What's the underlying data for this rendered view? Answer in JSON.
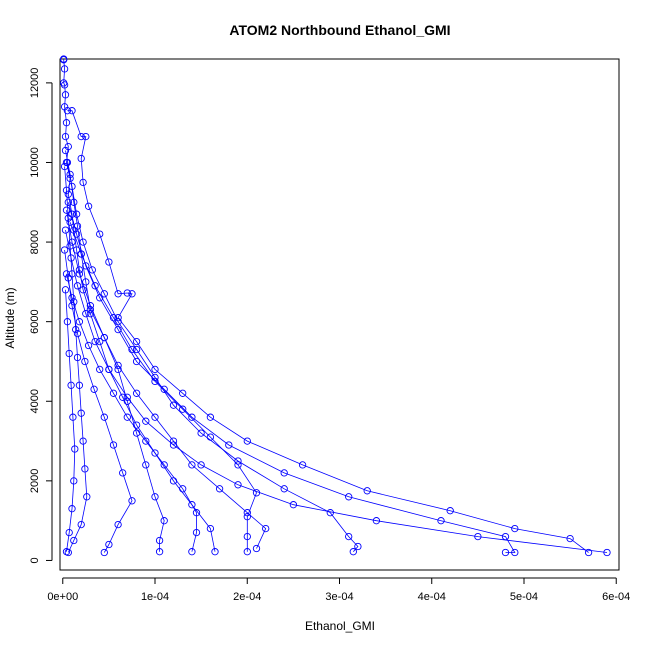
{
  "chart_data": {
    "type": "line",
    "title": "ATOM2 Northbound Ethanol_GMI",
    "xlabel": "Ethanol_GMI",
    "ylabel": "Altitude (m)",
    "xlim": [
      -3e-06,
      0.000603
    ],
    "ylim": [
      -240,
      12600
    ],
    "x_ticks": [
      0,
      0.0001,
      0.0002,
      0.0003,
      0.0004,
      0.0005,
      0.0006
    ],
    "x_tick_labels": [
      "0e+00",
      "1e-04",
      "2e-04",
      "3e-04",
      "4e-04",
      "5e-04",
      "6e-04"
    ],
    "y_ticks": [
      0,
      2000,
      4000,
      6000,
      8000,
      10000,
      12000
    ],
    "y_tick_labels": [
      "0",
      "2000",
      "4000",
      "6000",
      "8000",
      "10000",
      "12000"
    ],
    "marker": "open-circle",
    "color": "#0000ff",
    "series": [
      {
        "values": [
          {
            "x": 1e-06,
            "y": 12600
          },
          {
            "x": 1e-06,
            "y": 12580
          },
          {
            "x": 2e-06,
            "y": 12350
          },
          {
            "x": 1e-06,
            "y": 12000
          },
          {
            "x": 2e-06,
            "y": 11950
          },
          {
            "x": 3e-06,
            "y": 11700
          },
          {
            "x": 2e-06,
            "y": 11400
          },
          {
            "x": 4e-06,
            "y": 11000
          },
          {
            "x": 3e-06,
            "y": 10650
          },
          {
            "x": 6e-06,
            "y": 10400
          },
          {
            "x": 4e-06,
            "y": 10000
          },
          {
            "x": 8e-06,
            "y": 9600
          },
          {
            "x": 6e-06,
            "y": 9200
          },
          {
            "x": 1e-05,
            "y": 8700
          },
          {
            "x": 1.2e-05,
            "y": 8300
          },
          {
            "x": 1.5e-05,
            "y": 7800
          },
          {
            "x": 1.8e-05,
            "y": 7300
          },
          {
            "x": 2.2e-05,
            "y": 6800
          },
          {
            "x": 3e-05,
            "y": 6200
          },
          {
            "x": 4e-05,
            "y": 5500
          },
          {
            "x": 5e-05,
            "y": 4800
          },
          {
            "x": 7e-05,
            "y": 4100
          },
          {
            "x": 9e-05,
            "y": 3500
          },
          {
            "x": 0.00012,
            "y": 2900
          },
          {
            "x": 0.00015,
            "y": 2400
          },
          {
            "x": 0.00019,
            "y": 1900
          },
          {
            "x": 0.00025,
            "y": 1400
          },
          {
            "x": 0.00034,
            "y": 1000
          },
          {
            "x": 0.00045,
            "y": 600
          },
          {
            "x": 0.00059,
            "y": 200
          }
        ]
      },
      {
        "values": [
          {
            "x": 5e-06,
            "y": 11300
          },
          {
            "x": 1e-05,
            "y": 11300
          },
          {
            "x": 2e-05,
            "y": 10650
          },
          {
            "x": 2.5e-05,
            "y": 10650
          },
          {
            "x": 2e-05,
            "y": 10100
          },
          {
            "x": 2.2e-05,
            "y": 9500
          },
          {
            "x": 2.8e-05,
            "y": 8900
          },
          {
            "x": 4e-05,
            "y": 8200
          },
          {
            "x": 5e-05,
            "y": 7500
          },
          {
            "x": 6e-05,
            "y": 6700
          },
          {
            "x": 7e-05,
            "y": 6720
          },
          {
            "x": 7.5e-05,
            "y": 6700
          },
          {
            "x": 6e-05,
            "y": 6100
          },
          {
            "x": 8e-05,
            "y": 5500
          },
          {
            "x": 0.0001,
            "y": 4800
          },
          {
            "x": 0.00013,
            "y": 4200
          },
          {
            "x": 0.00016,
            "y": 3600
          },
          {
            "x": 0.0002,
            "y": 3000
          },
          {
            "x": 0.00026,
            "y": 2400
          },
          {
            "x": 0.00033,
            "y": 1750
          },
          {
            "x": 0.00042,
            "y": 1250
          },
          {
            "x": 0.00049,
            "y": 800
          },
          {
            "x": 0.00055,
            "y": 550
          },
          {
            "x": 0.00057,
            "y": 200
          }
        ]
      },
      {
        "values": [
          {
            "x": 3e-06,
            "y": 10300
          },
          {
            "x": 8e-06,
            "y": 9700
          },
          {
            "x": 1.2e-05,
            "y": 9000
          },
          {
            "x": 1.6e-05,
            "y": 8400
          },
          {
            "x": 2e-05,
            "y": 7700
          },
          {
            "x": 2.5e-05,
            "y": 7000
          },
          {
            "x": 3e-05,
            "y": 6300
          },
          {
            "x": 4.5e-05,
            "y": 5600
          },
          {
            "x": 6e-05,
            "y": 4900
          },
          {
            "x": 8e-05,
            "y": 4200
          },
          {
            "x": 0.0001,
            "y": 3600
          },
          {
            "x": 0.00012,
            "y": 3000
          },
          {
            "x": 0.00014,
            "y": 2400
          },
          {
            "x": 0.00017,
            "y": 1800
          },
          {
            "x": 0.0002,
            "y": 1200
          },
          {
            "x": 0.00022,
            "y": 800
          },
          {
            "x": 0.00021,
            "y": 300
          }
        ]
      },
      {
        "values": [
          {
            "x": 2e-06,
            "y": 9900
          },
          {
            "x": 4e-06,
            "y": 9300
          },
          {
            "x": 6e-06,
            "y": 8600
          },
          {
            "x": 8e-06,
            "y": 7900
          },
          {
            "x": 1e-05,
            "y": 7200
          },
          {
            "x": 1.2e-05,
            "y": 6500
          },
          {
            "x": 1.4e-05,
            "y": 5800
          },
          {
            "x": 1.6e-05,
            "y": 5100
          },
          {
            "x": 1.8e-05,
            "y": 4400
          },
          {
            "x": 2e-05,
            "y": 3700
          },
          {
            "x": 2.2e-05,
            "y": 3000
          },
          {
            "x": 2.4e-05,
            "y": 2300
          },
          {
            "x": 2.6e-05,
            "y": 1600
          },
          {
            "x": 2e-05,
            "y": 900
          },
          {
            "x": 1.2e-05,
            "y": 500
          },
          {
            "x": 6e-06,
            "y": 200
          }
        ]
      },
      {
        "values": [
          {
            "x": 6e-06,
            "y": 9000
          },
          {
            "x": 1.5e-05,
            "y": 8200
          },
          {
            "x": 2.5e-05,
            "y": 7400
          },
          {
            "x": 4e-05,
            "y": 6600
          },
          {
            "x": 6e-05,
            "y": 5800
          },
          {
            "x": 8e-05,
            "y": 5000
          },
          {
            "x": 0.00011,
            "y": 4300
          },
          {
            "x": 0.00014,
            "y": 3600
          },
          {
            "x": 0.00018,
            "y": 2900
          },
          {
            "x": 0.00024,
            "y": 2200
          },
          {
            "x": 0.00031,
            "y": 1600
          },
          {
            "x": 0.00041,
            "y": 1000
          },
          {
            "x": 0.00048,
            "y": 600
          },
          {
            "x": 0.00049,
            "y": 200
          },
          {
            "x": 0.00048,
            "y": 200
          }
        ]
      },
      {
        "values": [
          {
            "x": 4e-06,
            "y": 8800
          },
          {
            "x": 1e-05,
            "y": 8000
          },
          {
            "x": 1.8e-05,
            "y": 7200
          },
          {
            "x": 3e-05,
            "y": 6400
          },
          {
            "x": 4.5e-05,
            "y": 5600
          },
          {
            "x": 6e-05,
            "y": 4800
          },
          {
            "x": 7e-05,
            "y": 4000
          },
          {
            "x": 8e-05,
            "y": 3200
          },
          {
            "x": 9e-05,
            "y": 2400
          },
          {
            "x": 0.0001,
            "y": 1600
          },
          {
            "x": 0.00011,
            "y": 1000
          },
          {
            "x": 0.000105,
            "y": 500
          },
          {
            "x": 0.000105,
            "y": 220
          }
        ]
      },
      {
        "values": [
          {
            "x": 3e-06,
            "y": 8300
          },
          {
            "x": 9e-06,
            "y": 7600
          },
          {
            "x": 1.6e-05,
            "y": 6900
          },
          {
            "x": 2.5e-05,
            "y": 6200
          },
          {
            "x": 3.5e-05,
            "y": 5500
          },
          {
            "x": 5e-05,
            "y": 4800
          },
          {
            "x": 6.5e-05,
            "y": 4100
          },
          {
            "x": 8e-05,
            "y": 3400
          },
          {
            "x": 0.0001,
            "y": 2700
          },
          {
            "x": 0.00012,
            "y": 2000
          },
          {
            "x": 0.00014,
            "y": 1400
          },
          {
            "x": 0.00016,
            "y": 800
          },
          {
            "x": 0.000165,
            "y": 220
          }
        ]
      },
      {
        "values": [
          {
            "x": 2e-06,
            "y": 7800
          },
          {
            "x": 6e-06,
            "y": 7100
          },
          {
            "x": 1e-05,
            "y": 6400
          },
          {
            "x": 1.6e-05,
            "y": 5700
          },
          {
            "x": 2.4e-05,
            "y": 5000
          },
          {
            "x": 3.4e-05,
            "y": 4300
          },
          {
            "x": 4.5e-05,
            "y": 3600
          },
          {
            "x": 5.5e-05,
            "y": 2900
          },
          {
            "x": 6.5e-05,
            "y": 2200
          },
          {
            "x": 7.5e-05,
            "y": 1500
          },
          {
            "x": 6e-05,
            "y": 900
          },
          {
            "x": 5e-05,
            "y": 400
          },
          {
            "x": 4.5e-05,
            "y": 200
          }
        ]
      },
      {
        "values": [
          {
            "x": 8e-06,
            "y": 8500
          },
          {
            "x": 2e-05,
            "y": 7700
          },
          {
            "x": 3.5e-05,
            "y": 6900
          },
          {
            "x": 5.5e-05,
            "y": 6100
          },
          {
            "x": 7.5e-05,
            "y": 5300
          },
          {
            "x": 0.0001,
            "y": 4500
          },
          {
            "x": 0.00013,
            "y": 3800
          },
          {
            "x": 0.00016,
            "y": 3100
          },
          {
            "x": 0.00019,
            "y": 2400
          },
          {
            "x": 0.00021,
            "y": 1700
          },
          {
            "x": 0.0002,
            "y": 1100
          },
          {
            "x": 0.0002,
            "y": 600
          },
          {
            "x": 0.0002,
            "y": 220
          }
        ]
      },
      {
        "values": [
          {
            "x": 4e-06,
            "y": 7200
          },
          {
            "x": 1e-05,
            "y": 6600
          },
          {
            "x": 1.8e-05,
            "y": 6000
          },
          {
            "x": 2.8e-05,
            "y": 5400
          },
          {
            "x": 4e-05,
            "y": 4800
          },
          {
            "x": 5.5e-05,
            "y": 4200
          },
          {
            "x": 7e-05,
            "y": 3600
          },
          {
            "x": 9e-05,
            "y": 3000
          },
          {
            "x": 0.00011,
            "y": 2400
          },
          {
            "x": 0.00013,
            "y": 1800
          },
          {
            "x": 0.000145,
            "y": 1200
          },
          {
            "x": 0.000145,
            "y": 700
          },
          {
            "x": 0.00014,
            "y": 220
          }
        ]
      },
      {
        "values": [
          {
            "x": 3e-06,
            "y": 6800
          },
          {
            "x": 5e-06,
            "y": 6000
          },
          {
            "x": 7e-06,
            "y": 5200
          },
          {
            "x": 9e-06,
            "y": 4400
          },
          {
            "x": 1.1e-05,
            "y": 3600
          },
          {
            "x": 1.3e-05,
            "y": 2800
          },
          {
            "x": 1.2e-05,
            "y": 2000
          },
          {
            "x": 1e-05,
            "y": 1300
          },
          {
            "x": 7e-06,
            "y": 700
          },
          {
            "x": 4e-06,
            "y": 220
          }
        ]
      },
      {
        "values": [
          {
            "x": 5e-06,
            "y": 10000
          },
          {
            "x": 1e-05,
            "y": 9400
          },
          {
            "x": 1.5e-05,
            "y": 8700
          },
          {
            "x": 2.2e-05,
            "y": 8000
          },
          {
            "x": 3.2e-05,
            "y": 7300
          },
          {
            "x": 4.5e-05,
            "y": 6700
          },
          {
            "x": 6e-05,
            "y": 6000
          },
          {
            "x": 8e-05,
            "y": 5300
          },
          {
            "x": 0.0001,
            "y": 4600
          },
          {
            "x": 0.00012,
            "y": 3900
          },
          {
            "x": 0.00015,
            "y": 3200
          },
          {
            "x": 0.00019,
            "y": 2500
          },
          {
            "x": 0.00024,
            "y": 1800
          },
          {
            "x": 0.00029,
            "y": 1200
          },
          {
            "x": 0.00031,
            "y": 600
          },
          {
            "x": 0.00032,
            "y": 350
          },
          {
            "x": 0.000315,
            "y": 220
          }
        ]
      }
    ]
  }
}
